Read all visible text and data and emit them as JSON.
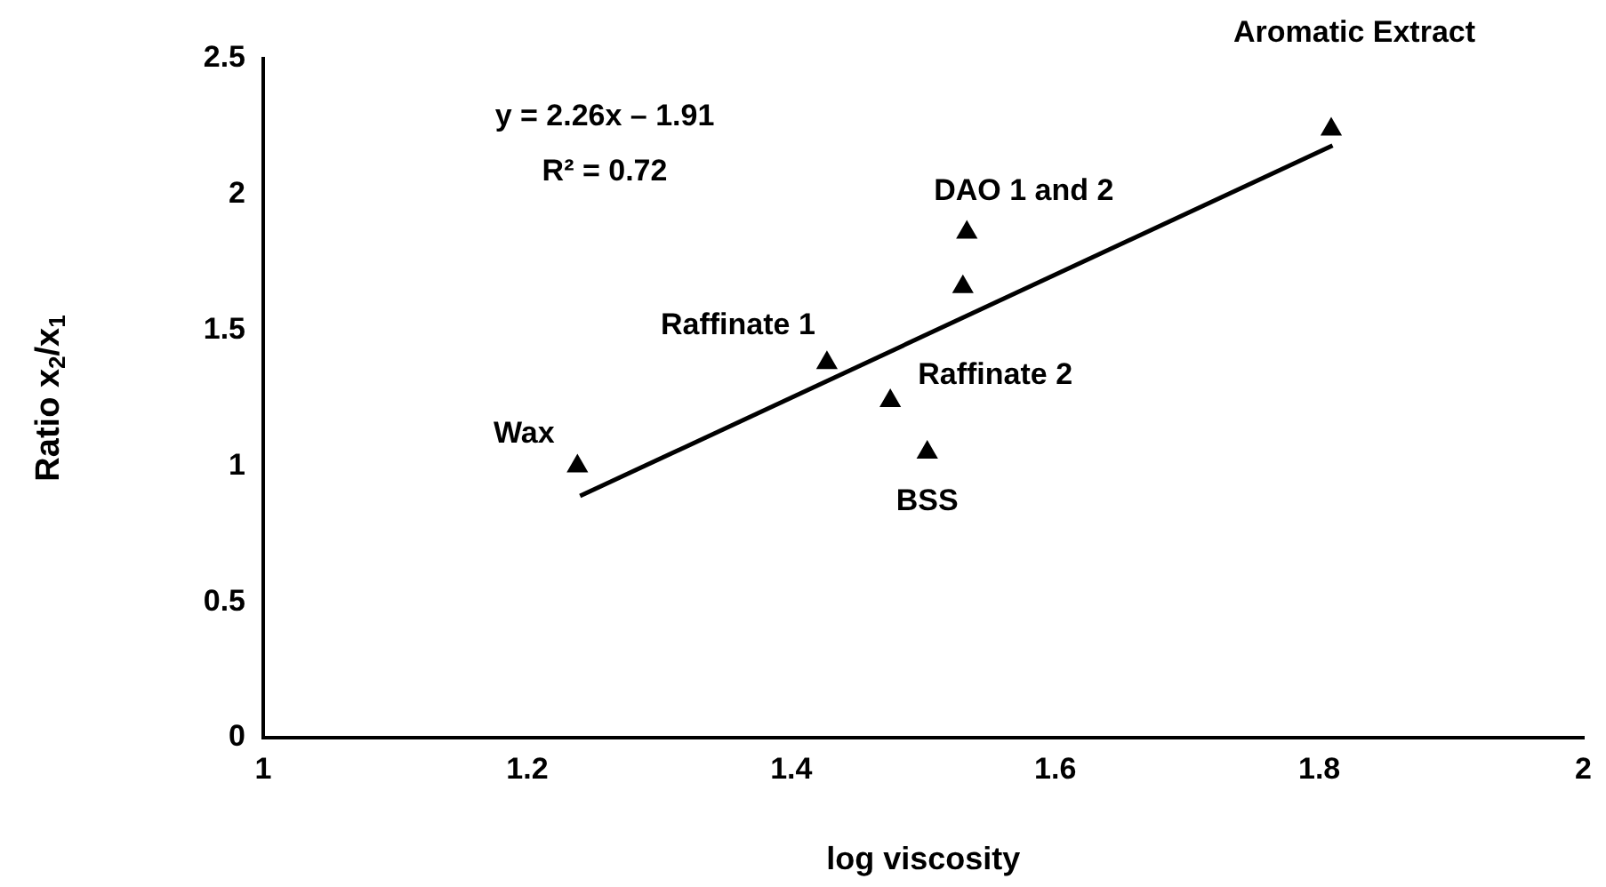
{
  "chart_data": {
    "type": "scatter",
    "xlabel": "log viscosity",
    "ylabel": "Ratio x$_{2}$/x$_{1}$",
    "xlim": [
      1,
      2
    ],
    "xticks": [
      1,
      1.2,
      1.4,
      1.6,
      1.8,
      2
    ],
    "ylim": [
      0,
      2.5
    ],
    "yticks": [
      0,
      0.5,
      1,
      1.5,
      2,
      2.5
    ],
    "grid": false,
    "legend": false,
    "series": [
      {
        "color": "#000000",
        "marker": "triangle",
        "x": [
          1.238,
          1.427,
          1.475,
          1.503,
          1.53,
          1.533,
          1.809
        ],
        "values": [
          1.0,
          1.38,
          1.24,
          1.05,
          1.66,
          1.86,
          2.24
        ]
      },
      {
        "type": "line",
        "marker": "none",
        "color": "#000000",
        "x": [
          1.24,
          1.81
        ],
        "values": [
          0.89,
          2.18
        ]
      }
    ],
    "annotations": [
      {
        "text": "Wax",
        "x": 1.238,
        "y": 1.0
      },
      {
        "text": "Raffinate 1",
        "x": 1.427,
        "y": 1.38
      },
      {
        "text": "Raffinate 2",
        "x": 1.475,
        "y": 1.24
      },
      {
        "text": "BSS",
        "x": 1.503,
        "y": 1.05
      },
      {
        "text": "DAO 1 and 2",
        "x": 1.533,
        "y": 1.86
      },
      {
        "text": "Aromatic Extract",
        "x": 1.809,
        "y": 2.24
      },
      "y = 2.26x – 1.91",
      "R² = 0.72"
    ]
  }
}
